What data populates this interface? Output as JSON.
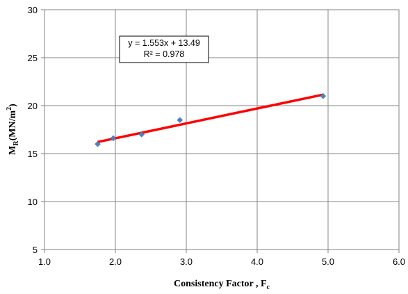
{
  "chart_data": {
    "type": "scatter",
    "xlabel": "Consistency Factor , F",
    "xlabel_sub": "c",
    "ylabel": "M",
    "ylabel_sub": "R",
    "ylabel_units": "(MN/m",
    "ylabel_sup": "2",
    "ylabel_close": ")",
    "xlim": [
      1.0,
      6.0
    ],
    "ylim": [
      5,
      30
    ],
    "x_ticks": [
      "1.0",
      "2.0",
      "3.0",
      "4.0",
      "5.0",
      "6.0"
    ],
    "y_ticks": [
      "5",
      "10",
      "15",
      "20",
      "25",
      "30"
    ],
    "grid": true,
    "series": [
      {
        "marker": "diamond",
        "color": "#4f81bd",
        "x": [
          1.75,
          1.97,
          2.37,
          2.91,
          4.93
        ],
        "y": [
          16.0,
          16.6,
          17.0,
          18.5,
          21.0
        ]
      }
    ],
    "trendline": {
      "color": "#ff0000",
      "slope": 1.553,
      "intercept": 13.49,
      "x_range": [
        1.75,
        4.93
      ]
    },
    "annotation": {
      "equation": "y = 1.553x + 13.49",
      "r_squared": "R² = 0.978"
    }
  }
}
